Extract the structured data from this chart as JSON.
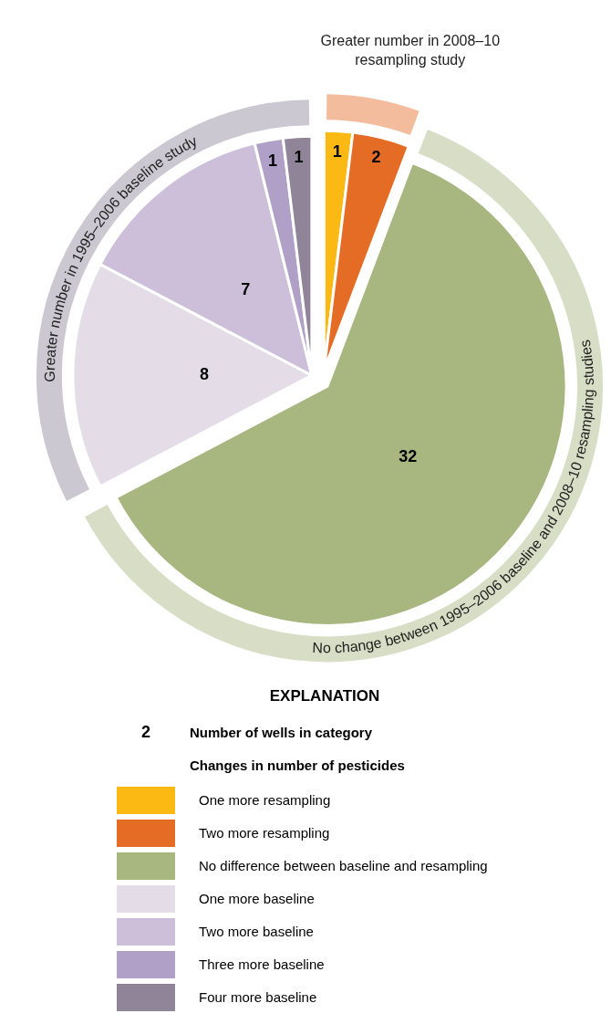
{
  "chart_data": {
    "type": "pie",
    "data_labels": true,
    "legend": "bottom",
    "legend_title": "EXPLANATION",
    "categories": [
      "One more resampling",
      "Two more resampling",
      "No difference between baseline and resampling",
      "One more baseline",
      "Two more baseline",
      "Three more baseline",
      "Four more baseline"
    ],
    "values": [
      1,
      2,
      32,
      8,
      7,
      1,
      1
    ],
    "colors": [
      "#fdb913",
      "#e46c25",
      "#a8b67f",
      "#e4dde8",
      "#cdbfd9",
      "#b0a0c8",
      "#8f8498"
    ],
    "annotations": [
      "Greater number in 2008–10 resampling study",
      "No change between 1995–2006 baseline and 2008–10 resampling studies",
      "Greater number in 1995–2006 baseline study",
      "2",
      "Number of wells in category",
      "Changes in number of pesticides"
    ]
  }
}
